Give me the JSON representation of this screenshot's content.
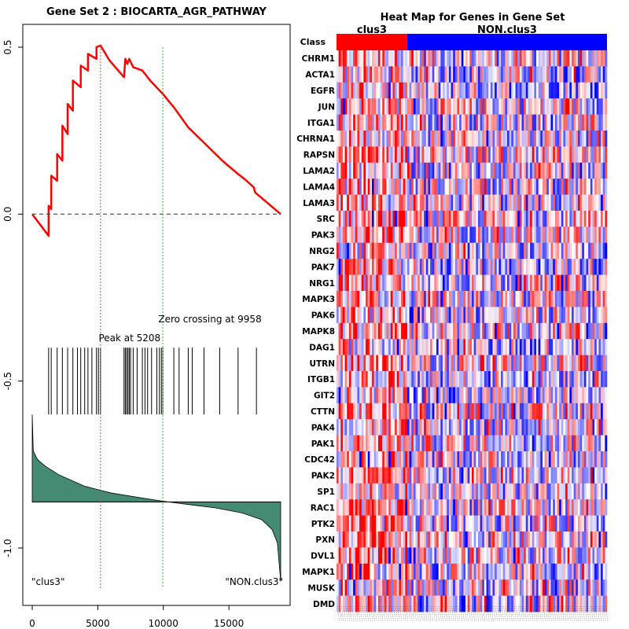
{
  "chart_data": [
    {
      "type": "line",
      "title": "Gene Set  2 : BIOCARTA_AGR_PATHWAY",
      "xlabel": "",
      "ylabel": "",
      "xlim": [
        0,
        19000
      ],
      "ylim": [
        -1.12,
        0.53
      ],
      "x_ticks": [
        0,
        5000,
        10000,
        15000
      ],
      "x_tick_labels": [
        "0",
        "5000",
        "10000",
        "15000"
      ],
      "y_ticks": [
        0.5,
        0.0,
        -0.5,
        -1.0
      ],
      "y_tick_labels": [
        "0.5",
        "0.0",
        "-0.5",
        "-1.0"
      ],
      "enrichment_curve": {
        "name": "running enrichment score",
        "color": "#ff0000",
        "x": [
          0,
          1250,
          1250,
          1450,
          1450,
          1900,
          1900,
          2300,
          2300,
          2700,
          2700,
          3100,
          3100,
          3700,
          3700,
          4250,
          4250,
          4900,
          4900,
          5208,
          5900,
          7000,
          7100,
          7250,
          7400,
          7700,
          8400,
          9000,
          9958,
          10800,
          11900,
          14500,
          15700,
          16200,
          16900,
          17000,
          18950
        ],
        "y": [
          0.0,
          -0.065,
          0.025,
          0.015,
          0.115,
          0.1,
          0.18,
          0.16,
          0.265,
          0.24,
          0.33,
          0.31,
          0.4,
          0.38,
          0.445,
          0.43,
          0.48,
          0.465,
          0.5,
          0.505,
          0.46,
          0.41,
          0.465,
          0.45,
          0.465,
          0.44,
          0.43,
          0.4,
          0.36,
          0.32,
          0.26,
          0.16,
          0.12,
          0.105,
          0.08,
          0.065,
          0.0
        ]
      },
      "baseline_y": 0.0,
      "annotations": {
        "peak_label": "Peak at 5208",
        "peak_x": 5208,
        "zero_crossing_label": "Zero crossing at 9958",
        "zero_crossing_x": 9958,
        "left_class_label": "\"clus3\"",
        "right_class_label": "\"NON.clus3\""
      },
      "hit_positions": [
        1250,
        1450,
        1900,
        2300,
        2700,
        3100,
        3450,
        3700,
        4000,
        4250,
        4550,
        4900,
        5050,
        5208,
        7000,
        7100,
        7200,
        7300,
        7400,
        7500,
        7700,
        8000,
        8400,
        8600,
        8800,
        9100,
        9500,
        9700,
        9850,
        9958,
        10800,
        11200,
        11900,
        12200,
        13100,
        14300,
        15700,
        17100
      ],
      "ranked_metric": {
        "color": "#458b74",
        "x": [
          0,
          80,
          400,
          1000,
          2000,
          4000,
          6000,
          8000,
          10000,
          12000,
          14000,
          16000,
          17500,
          18300,
          18700,
          18950
        ],
        "y": [
          -0.6,
          -0.71,
          -0.735,
          -0.755,
          -0.78,
          -0.815,
          -0.835,
          -0.848,
          -0.86,
          -0.87,
          -0.88,
          -0.895,
          -0.915,
          -0.945,
          -0.985,
          -1.1
        ],
        "baseline_y": -0.862
      }
    },
    {
      "type": "heatmap",
      "title": "Heat Map for Genes in Gene Set",
      "class_label": "Class",
      "groups": [
        {
          "name": "clus3",
          "color": "#ff0000",
          "columns": 34
        },
        {
          "name": "NON.clus3",
          "color": "#0000ff",
          "columns": 96
        }
      ],
      "genes": [
        "CHRM1",
        "ACTA1",
        "EGFR",
        "JUN",
        "ITGA1",
        "CHRNA1",
        "RAPSN",
        "LAMA2",
        "LAMA4",
        "LAMA3",
        "SRC",
        "PAK3",
        "NRG2",
        "PAK7",
        "NRG1",
        "MAPK3",
        "PAK6",
        "MAPK8",
        "DAG1",
        "UTRN",
        "ITGB1",
        "GIT2",
        "CTTN",
        "PAK4",
        "PAK1",
        "CDC42",
        "PAK2",
        "SP1",
        "RAC1",
        "PTK2",
        "PXN",
        "DVL1",
        "MAPK1",
        "MUSK",
        "DMD"
      ],
      "color_scale": {
        "low": "#0000ff",
        "mid": "#ffffff",
        "high": "#ff0000"
      },
      "column_labels": "illegible sample names"
    }
  ]
}
